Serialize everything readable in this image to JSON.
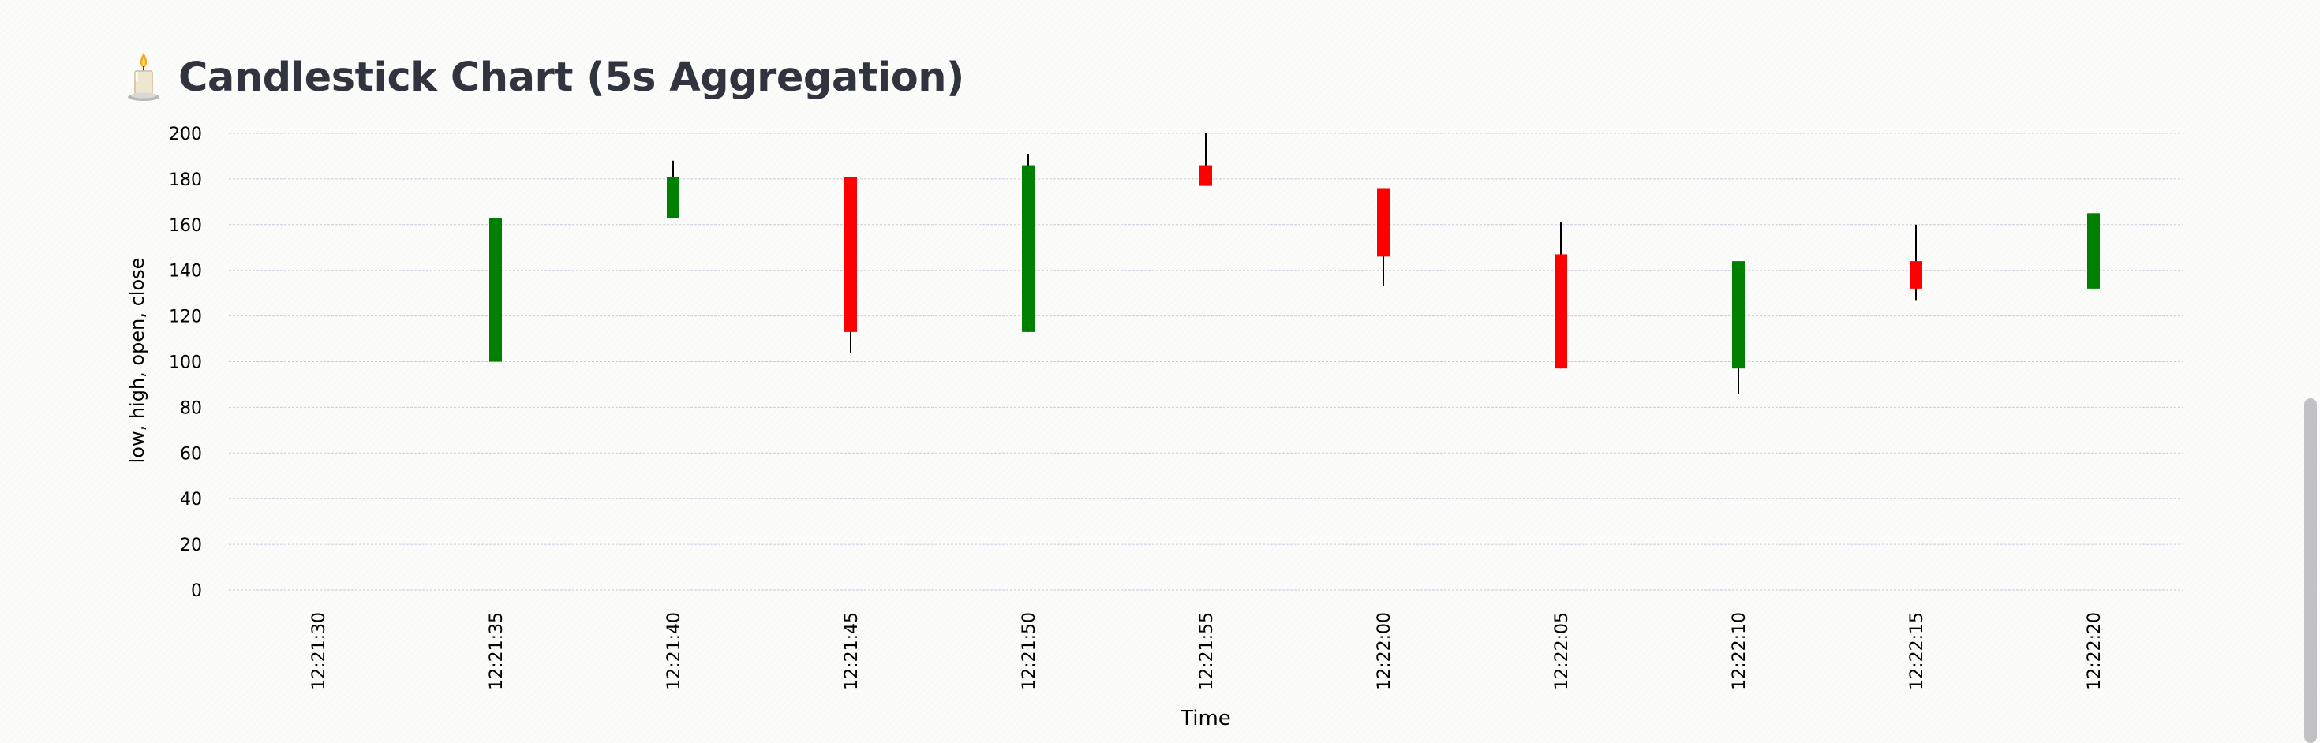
{
  "header": {
    "title": "Candlestick Chart (5s Aggregation)",
    "icon": "candle-icon"
  },
  "colors": {
    "increasing": "#008000",
    "decreasing": "#ff0000",
    "grid": "#c9cdd9",
    "title_text": "#31333f"
  },
  "chart_data": {
    "type": "candlestick",
    "title": "",
    "xlabel": "Time",
    "ylabel": "low, high, open, close",
    "ylim": [
      0,
      200
    ],
    "yticks": [
      0,
      20,
      40,
      60,
      80,
      100,
      120,
      140,
      160,
      180,
      200
    ],
    "grid": true,
    "categories": [
      "12:21:30",
      "12:21:35",
      "12:21:40",
      "12:21:45",
      "12:21:50",
      "12:21:55",
      "12:22:00",
      "12:22:05",
      "12:22:10",
      "12:22:15",
      "12:22:20"
    ],
    "candles": [
      {
        "x": "12:21:35",
        "open": 100,
        "high": 163,
        "low": 100,
        "close": 163
      },
      {
        "x": "12:21:40",
        "open": 163,
        "high": 188,
        "low": 163,
        "close": 181
      },
      {
        "x": "12:21:45",
        "open": 181,
        "high": 181,
        "low": 104,
        "close": 113
      },
      {
        "x": "12:21:50",
        "open": 113,
        "high": 191,
        "low": 113,
        "close": 186
      },
      {
        "x": "12:21:55",
        "open": 186,
        "high": 200,
        "low": 177,
        "close": 177
      },
      {
        "x": "12:22:00",
        "open": 176,
        "high": 176,
        "low": 133,
        "close": 146
      },
      {
        "x": "12:22:05",
        "open": 147,
        "high": 161,
        "low": 97,
        "close": 97
      },
      {
        "x": "12:22:10",
        "open": 97,
        "high": 144,
        "low": 86,
        "close": 144
      },
      {
        "x": "12:22:15",
        "open": 144,
        "high": 160,
        "low": 127,
        "close": 132
      },
      {
        "x": "12:22:20",
        "open": 132,
        "high": 165,
        "low": 132,
        "close": 165
      }
    ]
  }
}
